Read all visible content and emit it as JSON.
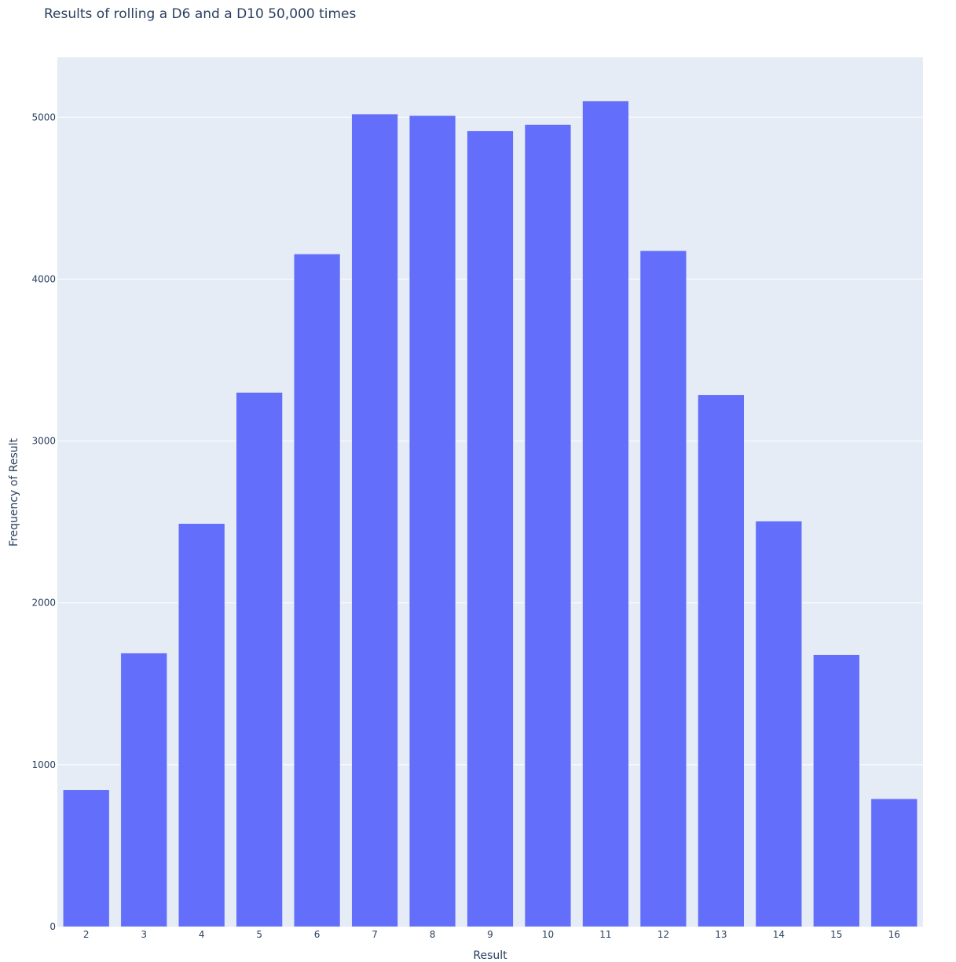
{
  "chart_data": {
    "type": "bar",
    "title": "Results of rolling a D6 and a D10 50,000 times",
    "xlabel": "Result",
    "ylabel": "Frequency of Result",
    "categories": [
      "2",
      "3",
      "4",
      "5",
      "6",
      "7",
      "8",
      "9",
      "10",
      "11",
      "12",
      "13",
      "14",
      "15",
      "16"
    ],
    "values": [
      845,
      1690,
      2490,
      3300,
      4155,
      5020,
      5010,
      4915,
      4955,
      5100,
      4175,
      3285,
      2505,
      1680,
      790
    ],
    "ylim": [
      0,
      5370
    ],
    "yticks": [
      "0",
      "1000",
      "2000",
      "3000",
      "4000",
      "5000"
    ],
    "grid": true,
    "legend": "none",
    "colors": {
      "bar": "#636efa",
      "plot_background": "#e5ecf6",
      "gridline": "#ffffff",
      "text": "#2a3f5f"
    }
  }
}
